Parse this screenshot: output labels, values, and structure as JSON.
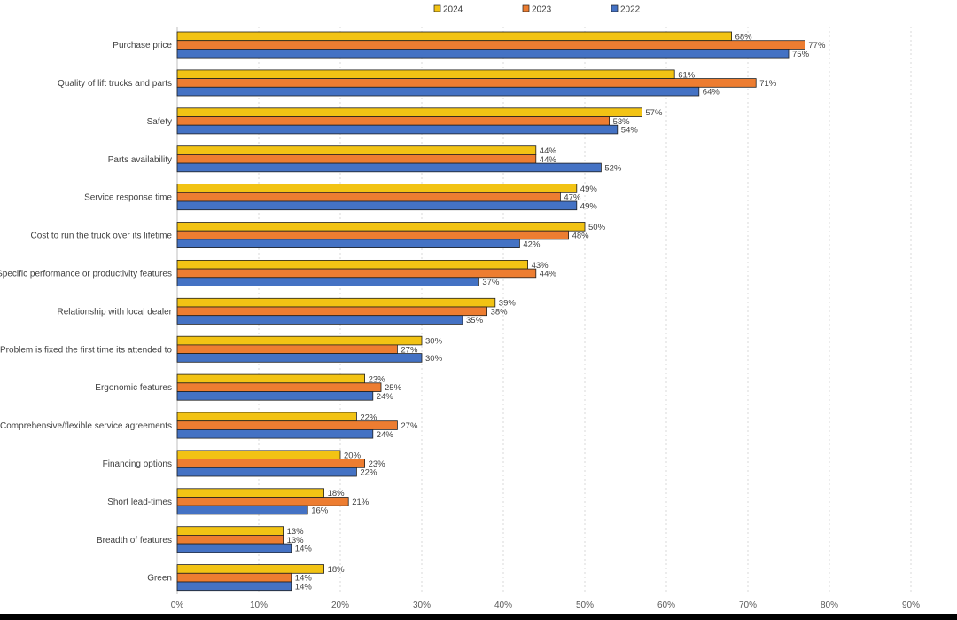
{
  "chart_data": {
    "type": "bar",
    "orientation": "horizontal",
    "title": "",
    "xlabel": "",
    "ylabel": "",
    "xlim": [
      0,
      90
    ],
    "x_ticks": [
      "0%",
      "10%",
      "20%",
      "30%",
      "40%",
      "50%",
      "60%",
      "70%",
      "80%",
      "90%"
    ],
    "legend_position": "top-center",
    "grid": true,
    "categories": [
      "Purchase price",
      "Quality of lift trucks and parts",
      "Safety",
      "Parts availability",
      "Service response time",
      "Cost to run the truck over its lifetime",
      "Specific performance or productivity features",
      "Relationship with local dealer",
      "Problem is fixed the first time its attended to",
      "Ergonomic features",
      "Comprehensive/flexible service agreements",
      "Financing options",
      "Short lead-times",
      "Breadth of features",
      "Green"
    ],
    "series": [
      {
        "name": "2024",
        "color": "#f2c314",
        "values": [
          68,
          61,
          57,
          44,
          49,
          50,
          43,
          39,
          30,
          23,
          22,
          20,
          18,
          13,
          18
        ]
      },
      {
        "name": "2023",
        "color": "#ed7d31",
        "values": [
          77,
          71,
          53,
          44,
          47,
          48,
          44,
          38,
          27,
          25,
          27,
          23,
          21,
          13,
          14
        ]
      },
      {
        "name": "2022",
        "color": "#4472c4",
        "values": [
          75,
          64,
          54,
          52,
          49,
          42,
          37,
          35,
          30,
          24,
          24,
          22,
          16,
          14,
          14
        ]
      }
    ]
  }
}
